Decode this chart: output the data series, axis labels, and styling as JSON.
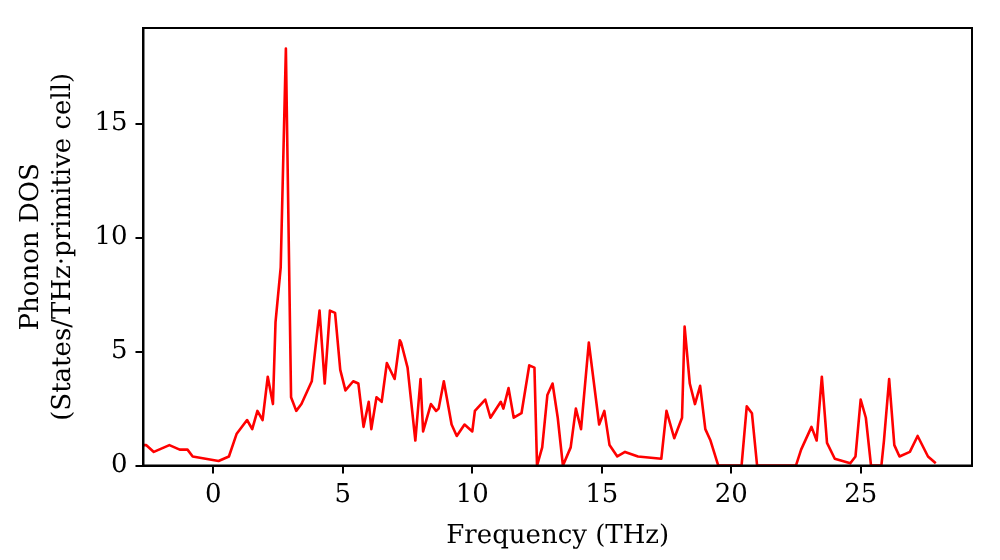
{
  "chart_data": {
    "type": "line",
    "xlabel": "Frequency (THz)",
    "ylabel": [
      "Phonon DOS",
      "(States/THz·primitive cell)"
    ],
    "xlim": [
      -2.7,
      29.3
    ],
    "ylim": [
      0,
      19.2
    ],
    "xticks": [
      0,
      5,
      10,
      15,
      20,
      25
    ],
    "yticks": [
      0,
      5,
      10,
      15
    ],
    "grid": false,
    "legend": false,
    "marker": "none",
    "line_style": "solid",
    "series": [
      {
        "color": "#ff0000",
        "x": [
          -2.7,
          -2.6,
          -2.3,
          -1.7,
          -1.3,
          -1.0,
          -0.8,
          0.2,
          0.6,
          0.9,
          1.3,
          1.5,
          1.7,
          1.9,
          2.1,
          2.3,
          2.4,
          2.6,
          2.8,
          3.0,
          3.2,
          3.4,
          3.8,
          4.1,
          4.3,
          4.5,
          4.7,
          4.9,
          5.1,
          5.4,
          5.6,
          5.8,
          6.0,
          6.1,
          6.3,
          6.5,
          6.7,
          7.0,
          7.2,
          7.25,
          7.5,
          7.8,
          8.0,
          8.1,
          8.4,
          8.6,
          8.7,
          8.9,
          9.2,
          9.4,
          9.7,
          10.0,
          10.1,
          10.5,
          10.7,
          11.1,
          11.2,
          11.4,
          11.6,
          11.9,
          12.2,
          12.4,
          12.5,
          12.7,
          12.9,
          13.1,
          13.3,
          13.5,
          13.8,
          14.0,
          14.2,
          14.5,
          14.9,
          15.1,
          15.3,
          15.6,
          15.9,
          16.4,
          17.3,
          17.5,
          17.8,
          18.1,
          18.2,
          18.4,
          18.6,
          18.8,
          19.0,
          19.2,
          19.5,
          20.4,
          20.6,
          20.8,
          21.0,
          22.5,
          22.7,
          23.1,
          23.3,
          23.5,
          23.7,
          24.0,
          24.6,
          24.8,
          25.0,
          25.2,
          25.4,
          25.8,
          25.9,
          26.1,
          26.3,
          26.5,
          26.9,
          27.2,
          27.6,
          27.9
        ],
        "values": [
          0.9,
          0.9,
          0.6,
          0.9,
          0.7,
          0.7,
          0.4,
          0.2,
          0.4,
          1.4,
          2.0,
          1.6,
          2.4,
          2.0,
          3.9,
          2.7,
          6.3,
          8.7,
          18.3,
          3.0,
          2.4,
          2.7,
          3.7,
          6.8,
          3.6,
          6.8,
          6.7,
          4.2,
          3.3,
          3.7,
          3.6,
          1.7,
          2.8,
          1.6,
          3.0,
          2.8,
          4.5,
          3.8,
          5.5,
          5.4,
          4.3,
          1.1,
          3.8,
          1.5,
          2.7,
          2.4,
          2.5,
          3.7,
          1.8,
          1.3,
          1.8,
          1.5,
          2.4,
          2.9,
          2.1,
          2.8,
          2.5,
          3.4,
          2.1,
          2.3,
          4.4,
          4.3,
          0,
          0.8,
          3.1,
          3.6,
          2.1,
          0,
          0.8,
          2.5,
          1.6,
          5.4,
          1.8,
          2.4,
          0.9,
          0.4,
          0.6,
          0.4,
          0.3,
          2.4,
          1.2,
          2.1,
          6.1,
          3.6,
          2.7,
          3.5,
          1.6,
          1.1,
          0,
          0,
          2.6,
          2.3,
          0,
          0,
          0.7,
          1.7,
          1.1,
          3.9,
          1.0,
          0.3,
          0.1,
          0.4,
          2.9,
          2.1,
          0,
          0,
          1.1,
          3.8,
          0.9,
          0.4,
          0.6,
          1.3,
          0.4,
          0.1
        ]
      }
    ]
  }
}
